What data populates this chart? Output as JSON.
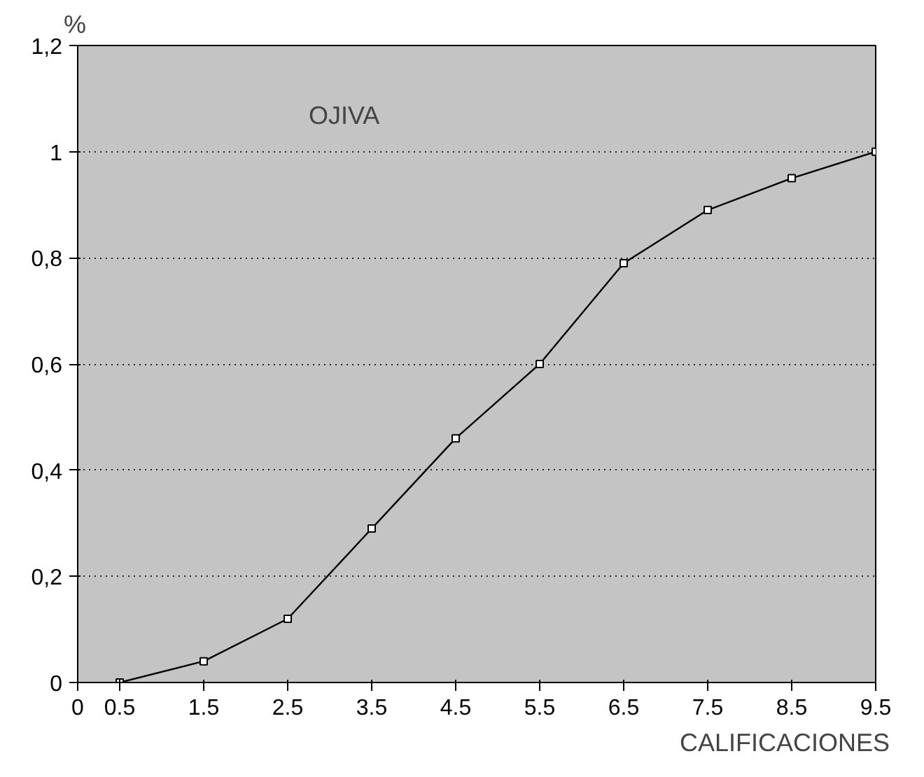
{
  "chart_data": {
    "type": "line",
    "ylabel": "%",
    "xlabel": "CALIFICACIONES",
    "annotations": [
      "OJIVA"
    ],
    "x": [
      0.5,
      1.5,
      2.5,
      3.5,
      4.5,
      5.5,
      6.5,
      7.5,
      8.5,
      9.5
    ],
    "series": [
      {
        "color": "#000000",
        "values": [
          0,
          0.04,
          0.12,
          0.29,
          0.46,
          0.6,
          0.79,
          0.89,
          0.95,
          1.0
        ]
      }
    ],
    "xlim": [
      0,
      9.5
    ],
    "xticks": [
      0,
      0.5,
      1.5,
      2.5,
      3.5,
      4.5,
      5.5,
      6.5,
      7.5,
      8.5,
      9.5
    ],
    "ylim": [
      0,
      1.2
    ],
    "yticks": [
      0,
      {
        "value": 0.2,
        "label": "0,2"
      },
      {
        "value": 0.4,
        "label": "0,4"
      },
      {
        "value": 0.6,
        "label": "0,6"
      },
      {
        "value": 0.8,
        "label": "0,8"
      },
      1,
      {
        "value": 1.2,
        "label": "1,2"
      }
    ],
    "grid": "y",
    "marker": "square",
    "line_style": "solid"
  }
}
